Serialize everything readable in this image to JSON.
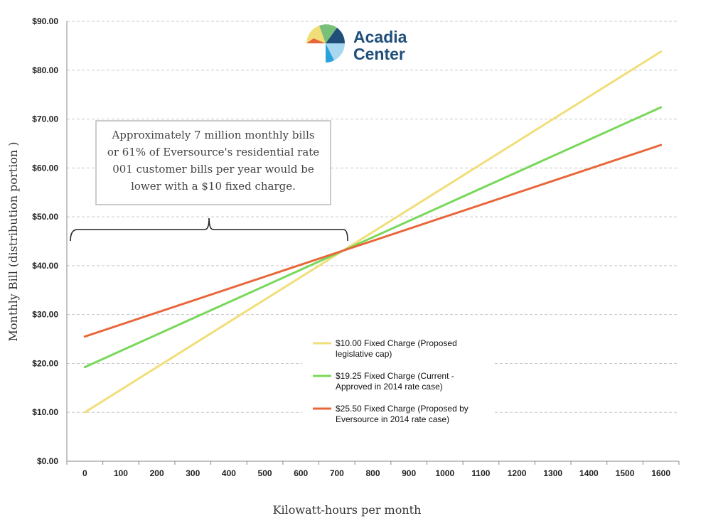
{
  "chart_data": {
    "type": "line",
    "xlabel": "Kilowatt-hours per month",
    "ylabel": "Monthly Bill (distribution portion )",
    "x": [
      0,
      100,
      200,
      300,
      400,
      500,
      600,
      700,
      800,
      900,
      1000,
      1100,
      1200,
      1300,
      1400,
      1500,
      1600
    ],
    "x_ticks": [
      "0",
      "100",
      "200",
      "300",
      "400",
      "500",
      "600",
      "700",
      "800",
      "900",
      "1000",
      "1100",
      "1200",
      "1300",
      "1400",
      "1500",
      "1600"
    ],
    "xlim": [
      -50,
      1650
    ],
    "ylim": [
      0,
      90
    ],
    "y_ticks": [
      0,
      10,
      20,
      30,
      40,
      50,
      60,
      70,
      80,
      90
    ],
    "y_tick_labels": [
      "$0.00",
      "$10.00",
      "$20.00",
      "$30.00",
      "$40.00",
      "$50.00",
      "$60.00",
      "$70.00",
      "$80.00",
      "$90.00"
    ],
    "grid": true,
    "legend_position": "lower-center-right",
    "series": [
      {
        "name": "$10.00 Fixed Charge (Proposed legislative cap)",
        "legend_lines": [
          "$10.00 Fixed Charge (Proposed",
          "legislative cap)"
        ],
        "color": "#f0df78",
        "x": [
          0,
          1600
        ],
        "values": [
          10.0,
          83.8
        ]
      },
      {
        "name": "$19.25 Fixed Charge (Current - Approved in 2014 rate case)",
        "legend_lines": [
          "$19.25 Fixed Charge (Current -",
          "Approved in 2014 rate case)"
        ],
        "color": "#78d85a",
        "x": [
          0,
          1600
        ],
        "values": [
          19.25,
          72.4
        ]
      },
      {
        "name": "$25.50 Fixed Charge (Proposed by Eversource in 2014 rate case)",
        "legend_lines": [
          "$25.50 Fixed Charge (Proposed by",
          "Eversource in 2014 rate case)"
        ],
        "color": "#e8673a",
        "x": [
          0,
          1600
        ],
        "values": [
          25.5,
          64.7
        ]
      }
    ],
    "annotation": {
      "lines": [
        "Approximately 7 million monthly bills",
        "or 61% of Eversource's residential rate",
        "001 customer bills per year would be",
        "lower with a $10 fixed charge."
      ],
      "brace_x_range": [
        -40,
        730
      ],
      "brace_y": 48
    }
  },
  "logo": {
    "line1": "Acadia",
    "line2": "Center",
    "colors": [
      "#f0df78",
      "#78c07a",
      "#1f4e79",
      "#2aa3dc",
      "#e8673a",
      "#a7d8f0"
    ]
  }
}
